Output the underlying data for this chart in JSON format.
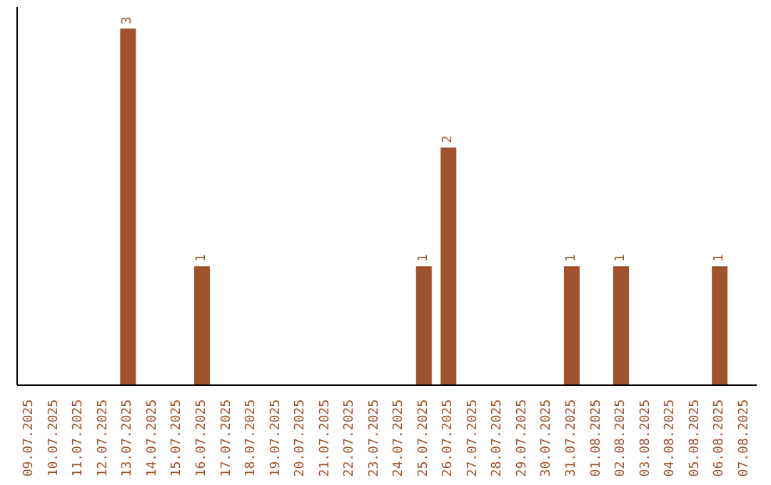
{
  "chart_data": {
    "type": "bar",
    "categories": [
      "09.07.2025",
      "10.07.2025",
      "11.07.2025",
      "12.07.2025",
      "13.07.2025",
      "14.07.2025",
      "15.07.2025",
      "16.07.2025",
      "17.07.2025",
      "18.07.2025",
      "19.07.2025",
      "20.07.2025",
      "21.07.2025",
      "22.07.2025",
      "23.07.2025",
      "24.07.2025",
      "25.07.2025",
      "26.07.2025",
      "27.07.2025",
      "28.07.2025",
      "29.07.2025",
      "30.07.2025",
      "31.07.2025",
      "01.08.2025",
      "02.08.2025",
      "03.08.2025",
      "04.08.2025",
      "05.08.2025",
      "06.08.2025",
      "07.08.2025"
    ],
    "values": [
      0,
      0,
      0,
      0,
      3,
      0,
      0,
      1,
      0,
      0,
      0,
      0,
      0,
      0,
      0,
      0,
      1,
      2,
      0,
      0,
      0,
      0,
      1,
      0,
      1,
      0,
      0,
      0,
      1,
      0
    ],
    "value_labels": [
      null,
      null,
      null,
      null,
      "3",
      null,
      null,
      "1",
      null,
      null,
      null,
      null,
      null,
      null,
      null,
      null,
      "1",
      "2",
      null,
      null,
      null,
      null,
      "1",
      null,
      "1",
      null,
      null,
      null,
      "1",
      null
    ],
    "color": "#a0522d"
  }
}
